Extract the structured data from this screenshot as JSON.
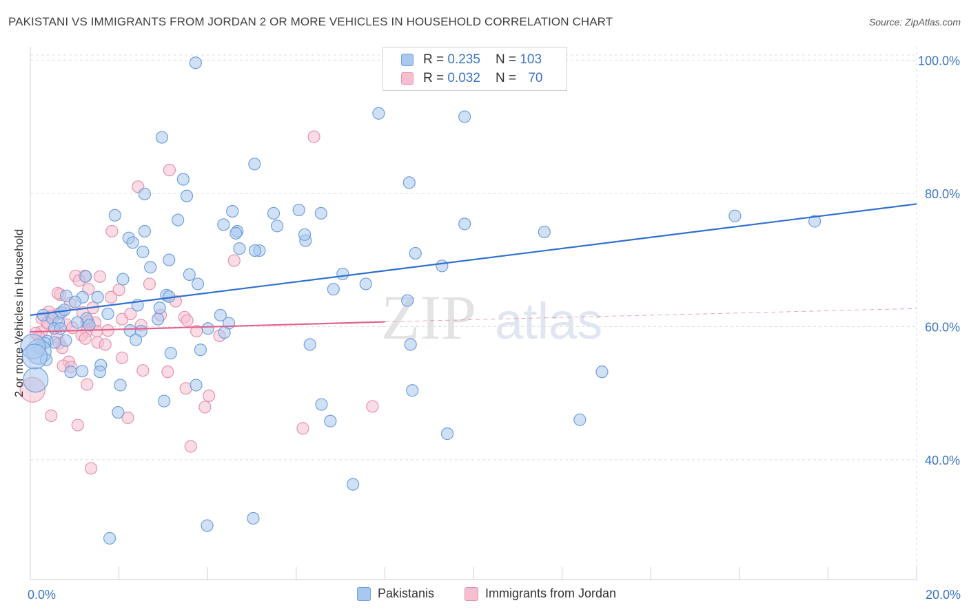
{
  "title": "PAKISTANI VS IMMIGRANTS FROM JORDAN 2 OR MORE VEHICLES IN HOUSEHOLD CORRELATION CHART",
  "source": "Source: ZipAtlas.com",
  "watermark": {
    "zip": "ZIP",
    "atlas": "atlas"
  },
  "legend": {
    "rows": [
      {
        "r_label": "R =",
        "r_value": "0.235",
        "n_label": "N =",
        "n_value": "103"
      },
      {
        "r_label": "R =",
        "r_value": "0.032",
        "n_label": "N =",
        "n_value": "70"
      }
    ]
  },
  "colors": {
    "blue_fill": "#a9c8ef",
    "blue_stroke": "#6f9fdc",
    "blue_line": "#2f6fce",
    "pink_fill": "#f6bfd0",
    "pink_stroke": "#e592ae",
    "pink_line": "#e2628c",
    "tick_label": "#3a74c4"
  },
  "chart_data": {
    "type": "scatter",
    "title": "PAKISTANI VS IMMIGRANTS FROM JORDAN 2 OR MORE VEHICLES IN HOUSEHOLD CORRELATION CHART",
    "xlabel": "",
    "ylabel": "2 or more Vehicles in Household",
    "xlim": [
      0,
      20
    ],
    "ylim": [
      22,
      102
    ],
    "x_tick_labels": [
      {
        "value": 0,
        "label": "0.0%"
      },
      {
        "value": 20,
        "label": "20.0%"
      }
    ],
    "y_tick_labels": [
      {
        "value": 40,
        "label": "40.0%"
      },
      {
        "value": 60,
        "label": "60.0%"
      },
      {
        "value": 80,
        "label": "80.0%"
      },
      {
        "value": 100,
        "label": "100.0%"
      }
    ],
    "grid": true,
    "legend_position": "top-center",
    "series": [
      {
        "name": "Pakistanis",
        "r": 0.235,
        "n": 103,
        "trend": {
          "x0": 0,
          "y0": 61.7,
          "x1": 20,
          "y1": 78.4
        },
        "points": [
          [
            3.73,
            99.6
          ],
          [
            7.86,
            92.0
          ],
          [
            9.8,
            91.5
          ],
          [
            2.97,
            88.4
          ],
          [
            5.06,
            84.4
          ],
          [
            3.45,
            82.1
          ],
          [
            8.55,
            81.6
          ],
          [
            2.58,
            79.9
          ],
          [
            3.53,
            79.6
          ],
          [
            1.91,
            76.7
          ],
          [
            4.56,
            77.3
          ],
          [
            5.49,
            77.0
          ],
          [
            6.06,
            77.5
          ],
          [
            6.56,
            77.0
          ],
          [
            3.33,
            76.0
          ],
          [
            4.36,
            75.3
          ],
          [
            5.57,
            75.1
          ],
          [
            4.67,
            74.3
          ],
          [
            4.64,
            74.0
          ],
          [
            2.58,
            74.3
          ],
          [
            9.8,
            75.4
          ],
          [
            11.6,
            74.2
          ],
          [
            15.9,
            76.6
          ],
          [
            17.7,
            75.8
          ],
          [
            2.22,
            73.3
          ],
          [
            2.31,
            72.6
          ],
          [
            4.72,
            71.7
          ],
          [
            5.17,
            71.4
          ],
          [
            6.21,
            72.9
          ],
          [
            6.19,
            73.8
          ],
          [
            5.07,
            71.4
          ],
          [
            2.54,
            71.2
          ],
          [
            8.69,
            71.0
          ],
          [
            3.13,
            70.0
          ],
          [
            2.71,
            68.9
          ],
          [
            9.29,
            69.1
          ],
          [
            3.59,
            67.8
          ],
          [
            7.05,
            67.9
          ],
          [
            3.78,
            66.4
          ],
          [
            1.25,
            67.5
          ],
          [
            2.09,
            67.1
          ],
          [
            7.57,
            66.4
          ],
          [
            6.84,
            65.6
          ],
          [
            1.18,
            64.4
          ],
          [
            0.81,
            64.6
          ],
          [
            1.52,
            64.4
          ],
          [
            3.07,
            64.7
          ],
          [
            3.13,
            64.5
          ],
          [
            8.51,
            63.9
          ],
          [
            1.01,
            63.7
          ],
          [
            2.42,
            63.2
          ],
          [
            2.92,
            62.8
          ],
          [
            0.7,
            62.1
          ],
          [
            0.77,
            62.5
          ],
          [
            1.75,
            61.9
          ],
          [
            4.29,
            61.7
          ],
          [
            2.88,
            61.1
          ],
          [
            1.27,
            61.2
          ],
          [
            0.29,
            61.7
          ],
          [
            0.5,
            61.2
          ],
          [
            0.64,
            60.6
          ],
          [
            4.48,
            60.5
          ],
          [
            0.54,
            59.7
          ],
          [
            1.33,
            60.2
          ],
          [
            0.68,
            59.7
          ],
          [
            2.25,
            59.4
          ],
          [
            4.01,
            59.7
          ],
          [
            4.38,
            59.1
          ],
          [
            2.5,
            59.3
          ],
          [
            1.06,
            60.6
          ],
          [
            2.38,
            58.0
          ],
          [
            0.8,
            57.9
          ],
          [
            0.38,
            57.8
          ],
          [
            0.55,
            57.6
          ],
          [
            0.33,
            57.5
          ],
          [
            6.31,
            57.3
          ],
          [
            8.58,
            57.3
          ],
          [
            3.84,
            56.5
          ],
          [
            3.17,
            56.0
          ],
          [
            0.21,
            56.8
          ],
          [
            0.19,
            56.2
          ],
          [
            1.59,
            54.2
          ],
          [
            0.36,
            55.0
          ],
          [
            1.57,
            53.2
          ],
          [
            0.91,
            53.2
          ],
          [
            1.17,
            53.3
          ],
          [
            12.9,
            53.2
          ],
          [
            8.62,
            50.4
          ],
          [
            3.74,
            51.2
          ],
          [
            2.03,
            51.2
          ],
          [
            3.02,
            48.8
          ],
          [
            6.57,
            48.3
          ],
          [
            1.98,
            47.1
          ],
          [
            6.77,
            45.8
          ],
          [
            12.4,
            46.0
          ],
          [
            9.41,
            43.9
          ],
          [
            7.28,
            36.3
          ],
          [
            3.99,
            30.1
          ],
          [
            5.03,
            31.2
          ],
          [
            1.79,
            28.2
          ],
          [
            0.12,
            52.0
          ],
          [
            0.06,
            57.0
          ],
          [
            0.1,
            55.5
          ]
        ]
      },
      {
        "name": "Immigrants from Jordan",
        "r": 0.032,
        "n": 70,
        "trend": {
          "x0": 0,
          "y0": 59.2,
          "x1": 8,
          "y1": 60.7
        },
        "trend_dashed": {
          "x0": 8,
          "y0": 60.7,
          "x1": 20,
          "y1": 62.7
        },
        "points": [
          [
            6.4,
            88.5
          ],
          [
            3.14,
            83.5
          ],
          [
            2.43,
            81.0
          ],
          [
            1.84,
            74.3
          ],
          [
            4.6,
            69.9
          ],
          [
            1.23,
            67.6
          ],
          [
            1.57,
            67.5
          ],
          [
            1.02,
            67.6
          ],
          [
            1.1,
            66.9
          ],
          [
            2.0,
            65.5
          ],
          [
            1.31,
            65.6
          ],
          [
            2.69,
            66.4
          ],
          [
            0.67,
            64.8
          ],
          [
            0.62,
            65.0
          ],
          [
            1.82,
            64.4
          ],
          [
            3.28,
            63.8
          ],
          [
            0.9,
            63.5
          ],
          [
            1.41,
            62.8
          ],
          [
            0.42,
            62.2
          ],
          [
            0.64,
            61.9
          ],
          [
            1.18,
            62.1
          ],
          [
            0.26,
            61.2
          ],
          [
            0.39,
            60.6
          ],
          [
            0.47,
            61.5
          ],
          [
            1.27,
            60.6
          ],
          [
            1.46,
            60.6
          ],
          [
            2.07,
            61.1
          ],
          [
            2.94,
            61.7
          ],
          [
            3.48,
            61.4
          ],
          [
            3.54,
            60.9
          ],
          [
            2.5,
            60.2
          ],
          [
            0.81,
            60.3
          ],
          [
            0.55,
            59.7
          ],
          [
            0.25,
            59.2
          ],
          [
            1.27,
            59.3
          ],
          [
            1.5,
            59.3
          ],
          [
            1.75,
            59.4
          ],
          [
            1.16,
            58.7
          ],
          [
            1.24,
            58.2
          ],
          [
            0.6,
            58.4
          ],
          [
            3.75,
            59.3
          ],
          [
            4.27,
            58.6
          ],
          [
            0.65,
            57.5
          ],
          [
            1.52,
            57.6
          ],
          [
            1.69,
            57.3
          ],
          [
            0.72,
            56.8
          ],
          [
            2.07,
            55.3
          ],
          [
            0.87,
            54.7
          ],
          [
            0.74,
            54.1
          ],
          [
            0.92,
            53.9
          ],
          [
            2.54,
            53.4
          ],
          [
            3.1,
            53.2
          ],
          [
            1.28,
            51.3
          ],
          [
            3.51,
            50.7
          ],
          [
            4.03,
            49.6
          ],
          [
            3.94,
            47.9
          ],
          [
            7.72,
            48.0
          ],
          [
            0.47,
            46.6
          ],
          [
            2.2,
            46.3
          ],
          [
            1.07,
            45.2
          ],
          [
            6.15,
            44.7
          ],
          [
            3.62,
            42.0
          ],
          [
            1.37,
            38.7
          ],
          [
            0.19,
            58.5
          ],
          [
            0.12,
            59.0
          ],
          [
            0.05,
            50.5
          ],
          [
            0.38,
            60.5
          ],
          [
            1.3,
            60.8
          ],
          [
            0.95,
            59.8
          ],
          [
            2.26,
            61.9
          ]
        ]
      }
    ]
  },
  "bottom_legend": [
    {
      "label": "Pakistanis"
    },
    {
      "label": "Immigrants from Jordan"
    }
  ]
}
